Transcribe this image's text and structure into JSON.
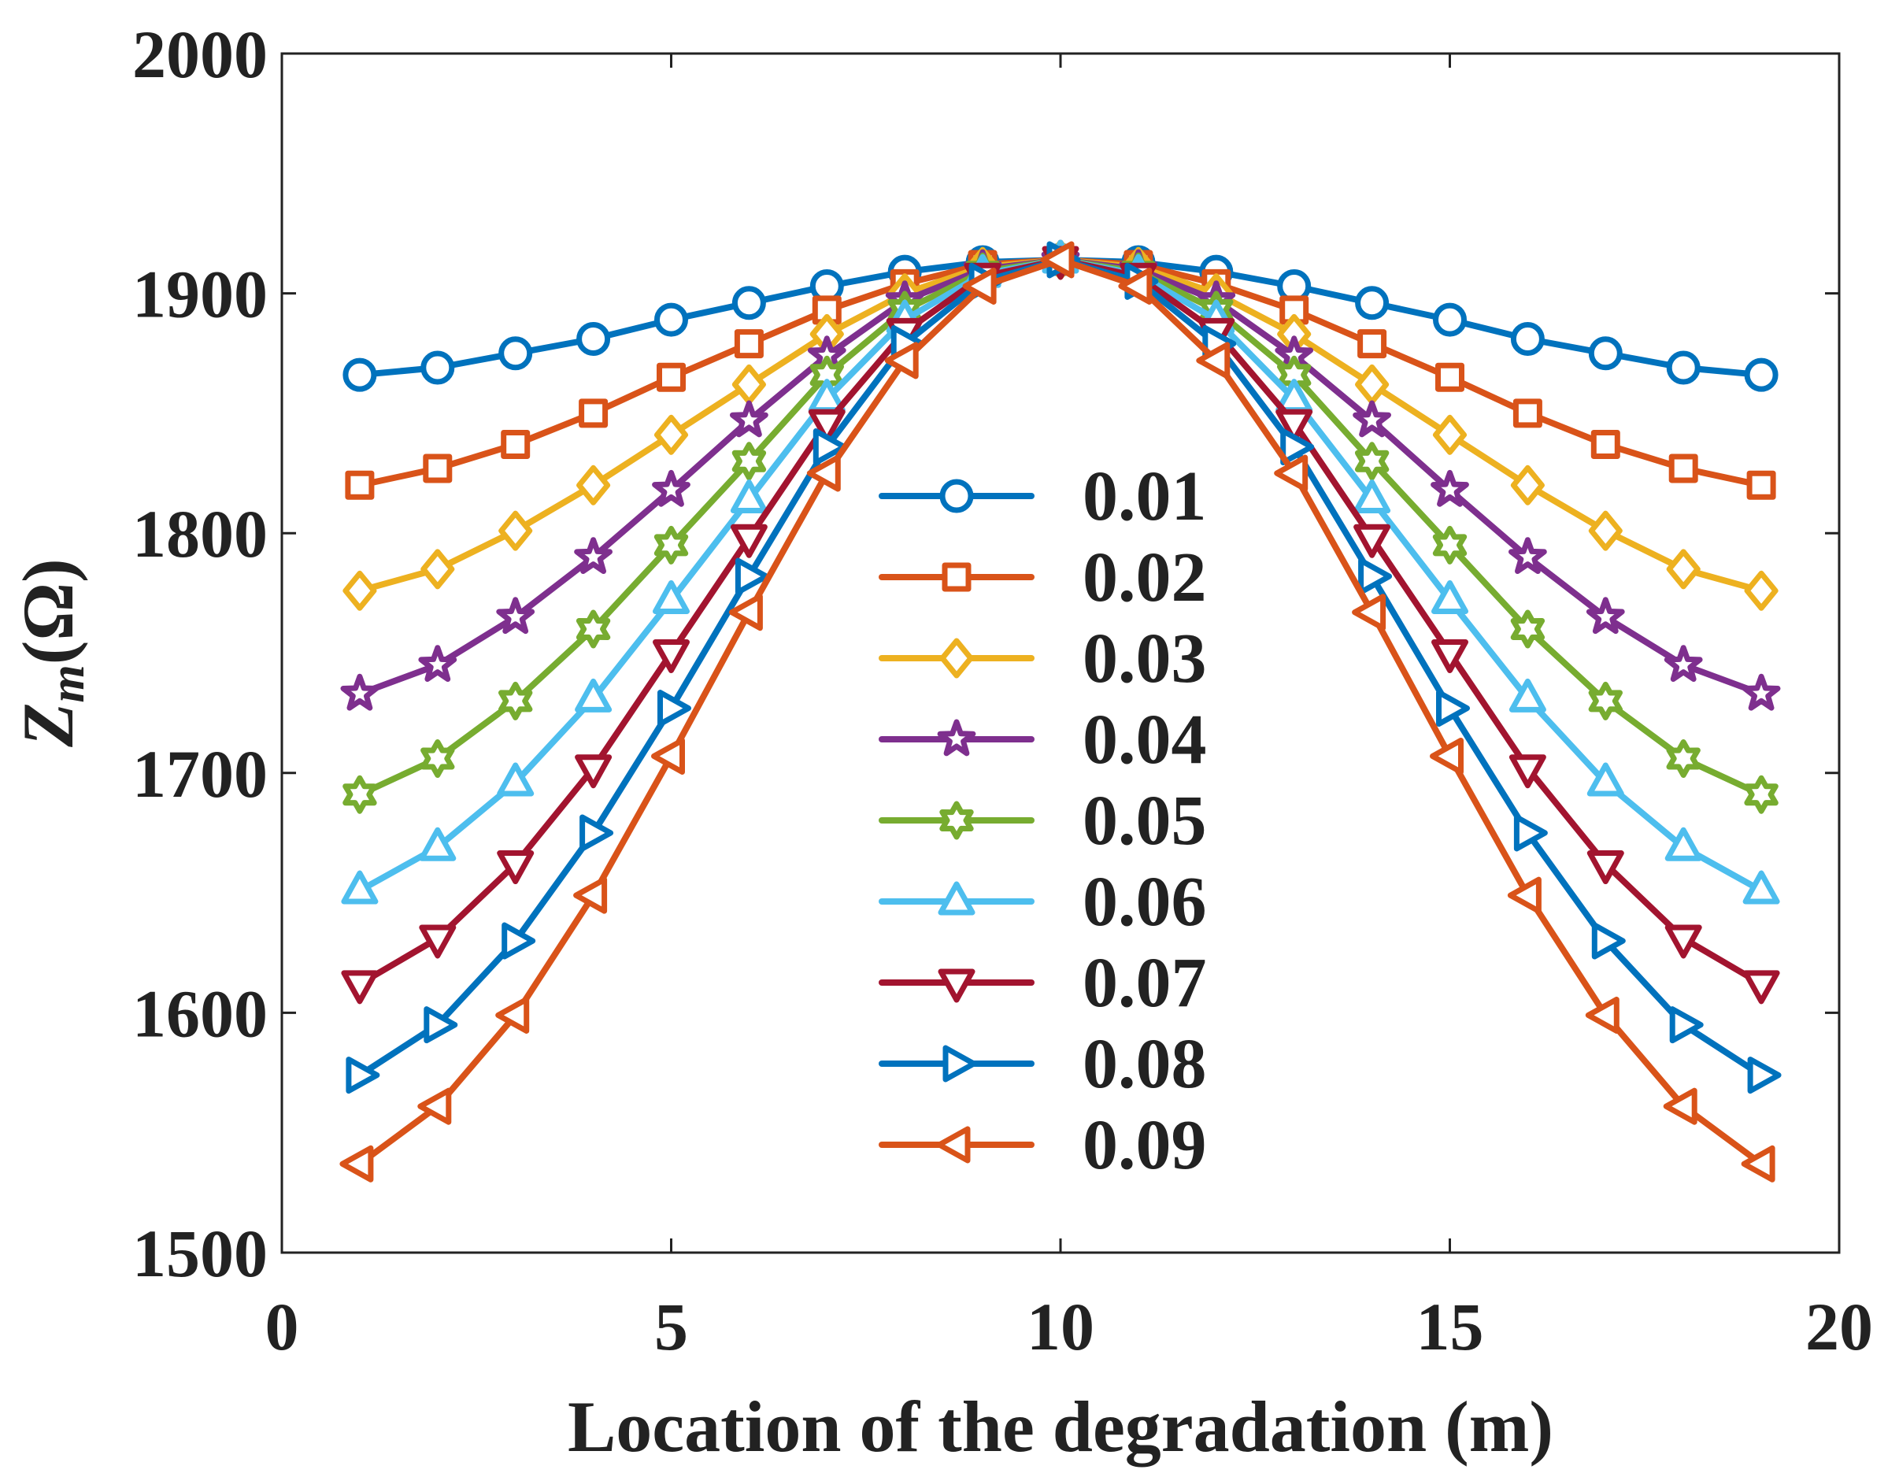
{
  "chart_data": {
    "type": "line",
    "title": "",
    "xlabel": "Location of the degradation (m)",
    "ylabel_main": "Z",
    "ylabel_sub": "m",
    "ylabel_unit": "(Ω)",
    "xlim": [
      0,
      20
    ],
    "ylim": [
      1500,
      2000
    ],
    "xticks": [
      0,
      5,
      10,
      15,
      20
    ],
    "yticks": [
      1500,
      1600,
      1700,
      1800,
      1900,
      2000
    ],
    "grid": false,
    "legend_position": "center",
    "x": [
      1,
      2,
      3,
      4,
      5,
      6,
      7,
      8,
      9,
      10,
      11,
      12,
      13,
      14,
      15,
      16,
      17,
      18,
      19
    ],
    "series": [
      {
        "name": "0.01",
        "color": "#0072BD",
        "marker": "circle",
        "values": [
          1866,
          1869,
          1875,
          1881,
          1889,
          1896,
          1903,
          1909,
          1913,
          1914,
          1913,
          1909,
          1903,
          1896,
          1889,
          1881,
          1875,
          1869,
          1866
        ]
      },
      {
        "name": "0.02",
        "color": "#D95319",
        "marker": "square",
        "values": [
          1820,
          1827,
          1837,
          1850,
          1865,
          1879,
          1893,
          1904,
          1912,
          1914,
          1912,
          1904,
          1893,
          1879,
          1865,
          1850,
          1837,
          1827,
          1820
        ]
      },
      {
        "name": "0.03",
        "color": "#EDB120",
        "marker": "diamond",
        "values": [
          1776,
          1785,
          1801,
          1820,
          1841,
          1862,
          1883,
          1900,
          1911,
          1914,
          1911,
          1900,
          1883,
          1862,
          1841,
          1820,
          1801,
          1785,
          1776
        ]
      },
      {
        "name": "0.04",
        "color": "#7E2F8E",
        "marker": "star",
        "values": [
          1733,
          1745,
          1765,
          1790,
          1818,
          1847,
          1874,
          1897,
          1910,
          1914,
          1910,
          1897,
          1874,
          1847,
          1818,
          1790,
          1765,
          1745,
          1733
        ]
      },
      {
        "name": "0.05",
        "color": "#77AC30",
        "marker": "hexagram",
        "values": [
          1691,
          1706,
          1730,
          1760,
          1795,
          1830,
          1866,
          1893,
          1909,
          1914,
          1909,
          1893,
          1866,
          1830,
          1795,
          1760,
          1730,
          1706,
          1691
        ]
      },
      {
        "name": "0.06",
        "color": "#4DBEEE",
        "marker": "triangle-up",
        "values": [
          1651,
          1669,
          1696,
          1731,
          1772,
          1814,
          1856,
          1889,
          1908,
          1914,
          1908,
          1889,
          1856,
          1814,
          1772,
          1731,
          1696,
          1669,
          1651
        ]
      },
      {
        "name": "0.07",
        "color": "#A2142F",
        "marker": "triangle-down",
        "values": [
          1612,
          1631,
          1662,
          1702,
          1750,
          1798,
          1846,
          1884,
          1907,
          1914,
          1907,
          1884,
          1846,
          1798,
          1750,
          1702,
          1662,
          1631,
          1612
        ]
      },
      {
        "name": "0.08",
        "color": "#0072BD",
        "marker": "triangle-right",
        "values": [
          1574,
          1595,
          1630,
          1675,
          1727,
          1782,
          1836,
          1879,
          1905,
          1914,
          1905,
          1879,
          1836,
          1782,
          1727,
          1675,
          1630,
          1595,
          1574
        ]
      },
      {
        "name": "0.09",
        "color": "#D95319",
        "marker": "triangle-left",
        "values": [
          1537,
          1561,
          1599,
          1649,
          1707,
          1767,
          1825,
          1872,
          1903,
          1914,
          1903,
          1872,
          1825,
          1767,
          1707,
          1649,
          1599,
          1561,
          1537
        ]
      }
    ]
  }
}
